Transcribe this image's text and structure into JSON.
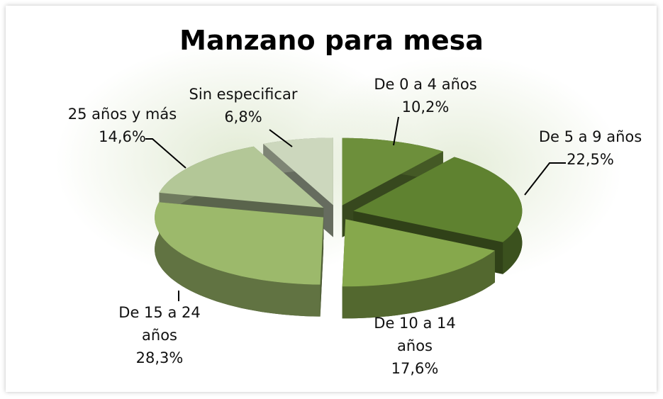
{
  "chart_data": {
    "type": "pie",
    "title": "Manzano para mesa",
    "categories": [
      "De 0 a 4 años",
      "De 5 a 9 años",
      "De 10 a 14 años",
      "De 15 a 24 años",
      "25 años y más",
      "Sin especificar"
    ],
    "values": [
      10.2,
      22.5,
      17.6,
      28.3,
      14.6,
      6.8
    ],
    "value_labels": [
      "10,2%",
      "22,5%",
      "17,6%",
      "28,3%",
      "14,6%",
      "6,8%"
    ],
    "colors": [
      "#6d8f3b",
      "#5f8230",
      "#86a84c",
      "#9cb96b",
      "#b3c797",
      "#ccd7bd"
    ]
  }
}
